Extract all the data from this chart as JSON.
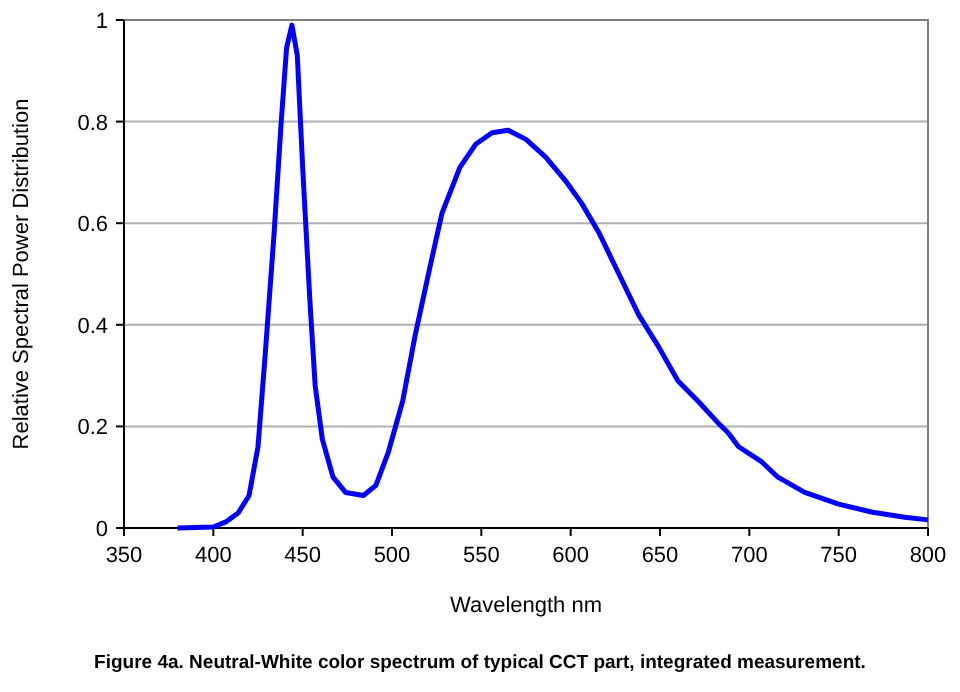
{
  "chart_data": {
    "type": "line",
    "xlabel": "Wavelength nm",
    "ylabel": "Relative Spectral Power Distribution",
    "annotations": [
      "Figure 4a.  Neutral-White color spectrum of  typical CCT part, integrated measurement."
    ],
    "xlim": [
      350,
      800
    ],
    "xticks": [
      350,
      400,
      450,
      500,
      550,
      600,
      650,
      700,
      750,
      800
    ],
    "ylim": [
      0,
      1
    ],
    "yticks": [
      0,
      0.2,
      0.4,
      0.6,
      0.8,
      1
    ],
    "grid": "y",
    "marker": "none",
    "line_style": "solid",
    "series": [
      {
        "color": "#0000ff",
        "x": [
          380,
          400,
          407,
          414,
          420,
          425,
          429,
          434,
          438,
          441,
          444,
          447,
          450,
          454,
          457,
          461,
          467,
          474,
          484,
          491,
          498,
          506,
          513,
          521,
          528,
          538,
          547,
          556,
          565,
          575,
          586,
          597,
          606,
          616,
          627,
          638,
          649,
          660,
          672,
          683,
          688,
          694,
          707,
          716,
          731,
          750,
          769,
          787,
          800
        ],
        "values": [
          0,
          0.002,
          0.012,
          0.03,
          0.064,
          0.16,
          0.34,
          0.58,
          0.8,
          0.945,
          0.99,
          0.93,
          0.71,
          0.45,
          0.28,
          0.175,
          0.1,
          0.07,
          0.064,
          0.084,
          0.15,
          0.25,
          0.38,
          0.51,
          0.62,
          0.71,
          0.756,
          0.778,
          0.783,
          0.765,
          0.73,
          0.684,
          0.64,
          0.58,
          0.5,
          0.42,
          0.358,
          0.29,
          0.247,
          0.205,
          0.188,
          0.16,
          0.13,
          0.1,
          0.07,
          0.047,
          0.031,
          0.021,
          0.016
        ]
      }
    ]
  }
}
